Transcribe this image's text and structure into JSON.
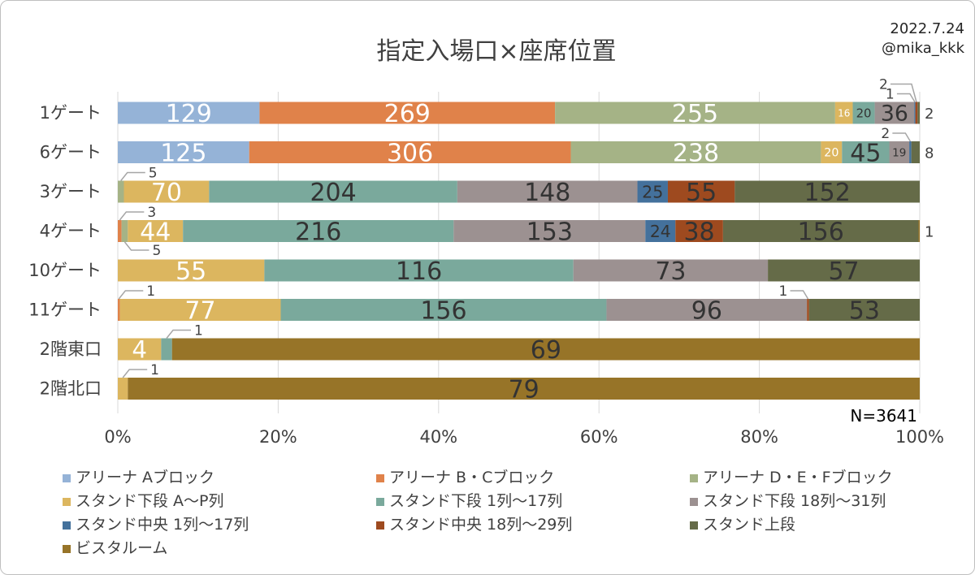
{
  "chart_data": {
    "type": "bar",
    "orientation": "horizontal",
    "stacked": "percent",
    "title": "指定入場口×座席位置",
    "date": "2022.7.24",
    "author": "@mika_kkk",
    "total_label": "N=3641",
    "categories": [
      "1ゲート",
      "6ゲート",
      "3ゲート",
      "4ゲート",
      "10ゲート",
      "11ゲート",
      "2階東口",
      "2階北口"
    ],
    "series": [
      {
        "name": "アリーナ Aブロック",
        "color": "#95b3d7",
        "label_color": "#ffffff",
        "values": [
          129,
          125,
          0,
          0,
          0,
          0,
          0,
          0
        ]
      },
      {
        "name": "アリーナ B・Cブロック",
        "color": "#e0824a",
        "label_color": "#ffffff",
        "values": [
          269,
          306,
          0,
          3,
          0,
          1,
          0,
          0
        ]
      },
      {
        "name": "アリーナ D・E・Fブロック",
        "color": "#a5b386",
        "label_color": "#ffffff",
        "values": [
          255,
          238,
          5,
          5,
          0,
          0,
          0,
          0
        ]
      },
      {
        "name": "スタンド下段 A～P列",
        "color": "#dcb65f",
        "label_color": "#ffffff",
        "values": [
          16,
          20,
          70,
          44,
          55,
          77,
          4,
          1
        ]
      },
      {
        "name": "スタンド下段 1列～17列",
        "color": "#7aa99c",
        "label_color": "#333333",
        "values": [
          20,
          45,
          204,
          216,
          116,
          156,
          1,
          0
        ]
      },
      {
        "name": "スタンド下段 18列～31列",
        "color": "#9c9191",
        "label_color": "#333333",
        "values": [
          36,
          19,
          148,
          153,
          73,
          96,
          0,
          0
        ]
      },
      {
        "name": "スタンド中央 1列～17列",
        "color": "#44719c",
        "label_color": "#333333",
        "values": [
          1,
          2,
          25,
          24,
          0,
          0,
          0,
          0
        ]
      },
      {
        "name": "スタンド中央 18列～29列",
        "color": "#9e4a1f",
        "label_color": "#333333",
        "values": [
          2,
          0,
          55,
          38,
          0,
          1,
          0,
          0
        ]
      },
      {
        "name": "スタンド上段",
        "color": "#656b48",
        "label_color": "#333333",
        "values": [
          2,
          8,
          152,
          156,
          57,
          53,
          0,
          0
        ]
      },
      {
        "name": "ビスタルーム",
        "color": "#977428",
        "label_color": "#333333",
        "values": [
          0,
          0,
          0,
          1,
          0,
          0,
          69,
          79
        ]
      }
    ],
    "xlim": [
      0,
      100
    ],
    "x_ticks": [
      "0%",
      "20%",
      "40%",
      "60%",
      "80%",
      "100%"
    ],
    "legend_position": "bottom",
    "grid": true
  }
}
